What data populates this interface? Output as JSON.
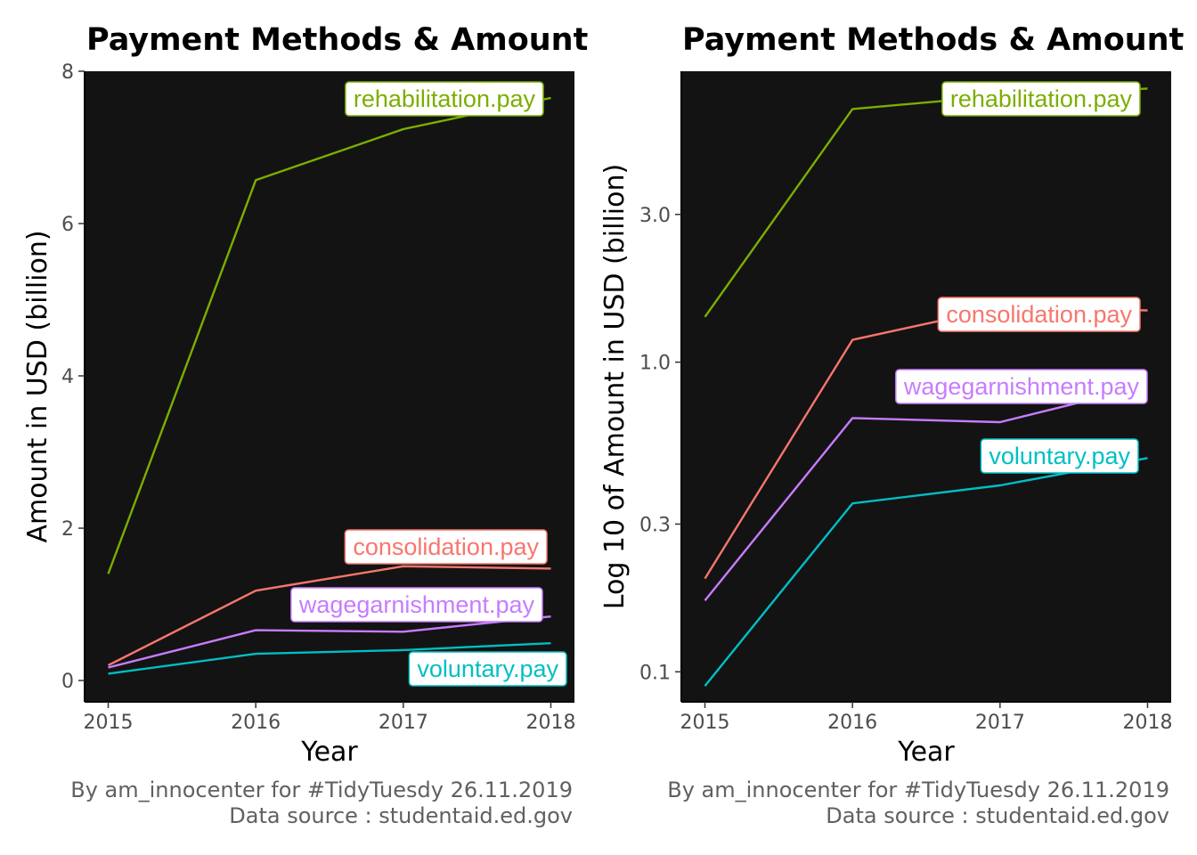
{
  "colors": {
    "panel_bg": "#131313",
    "rehabilitation.pay": "#7CAE00",
    "consolidation.pay": "#F8766D",
    "wagegarnishment.pay": "#C77CFF",
    "voluntary.pay": "#00BFC4"
  },
  "chart_data": [
    {
      "type": "line",
      "title": "Payment Methods & Amount",
      "xlabel": "Year",
      "ylabel": "Amount in USD (billion)",
      "x": [
        2015,
        2016,
        2017,
        2018
      ],
      "xlim": [
        2014.84,
        2018.16
      ],
      "ylim": [
        -0.28,
        8.0
      ],
      "y_scale": "linear",
      "x_ticks": [
        "2015",
        "2016",
        "2017",
        "2018"
      ],
      "y_ticks": [
        0,
        2,
        4,
        6,
        8
      ],
      "y_tick_labels": [
        "0",
        "2",
        "4",
        "6",
        "8"
      ],
      "grid": false,
      "series": [
        {
          "name": "rehabilitation.pay",
          "values": [
            1.4,
            6.57,
            7.24,
            7.65
          ]
        },
        {
          "name": "consolidation.pay",
          "values": [
            0.2,
            1.18,
            1.5,
            1.47
          ]
        },
        {
          "name": "wagegarnishment.pay",
          "values": [
            0.17,
            0.66,
            0.64,
            0.84
          ]
        },
        {
          "name": "voluntary.pay",
          "values": [
            0.09,
            0.35,
            0.4,
            0.49
          ]
        }
      ],
      "caption": [
        "By am_innocenter for #TidyTuesdy 26.11.2019",
        "Data source : studentaid.ed.gov"
      ]
    },
    {
      "type": "line",
      "title": "Payment Methods & Amount",
      "xlabel": "Year",
      "ylabel": "Log 10 of Amount in USD (billion)",
      "x": [
        2015,
        2016,
        2017,
        2018
      ],
      "xlim": [
        2014.84,
        2018.16
      ],
      "ylim": [
        0.08,
        8.7
      ],
      "y_scale": "log10",
      "x_ticks": [
        "2015",
        "2016",
        "2017",
        "2018"
      ],
      "y_ticks": [
        0.1,
        0.3,
        1.0,
        3.0
      ],
      "y_tick_labels": [
        "0.1",
        "0.3",
        "1.0",
        "3.0"
      ],
      "grid": false,
      "series": [
        {
          "name": "rehabilitation.pay",
          "values": [
            1.4,
            6.57,
            7.24,
            7.65
          ]
        },
        {
          "name": "consolidation.pay",
          "values": [
            0.2,
            1.18,
            1.5,
            1.47
          ]
        },
        {
          "name": "wagegarnishment.pay",
          "values": [
            0.17,
            0.66,
            0.64,
            0.84
          ]
        },
        {
          "name": "voluntary.pay",
          "values": [
            0.09,
            0.35,
            0.4,
            0.49
          ]
        }
      ],
      "caption": [
        "By am_innocenter for #TidyTuesdy 26.11.2019",
        "Data source : studentaid.ed.gov"
      ]
    }
  ]
}
